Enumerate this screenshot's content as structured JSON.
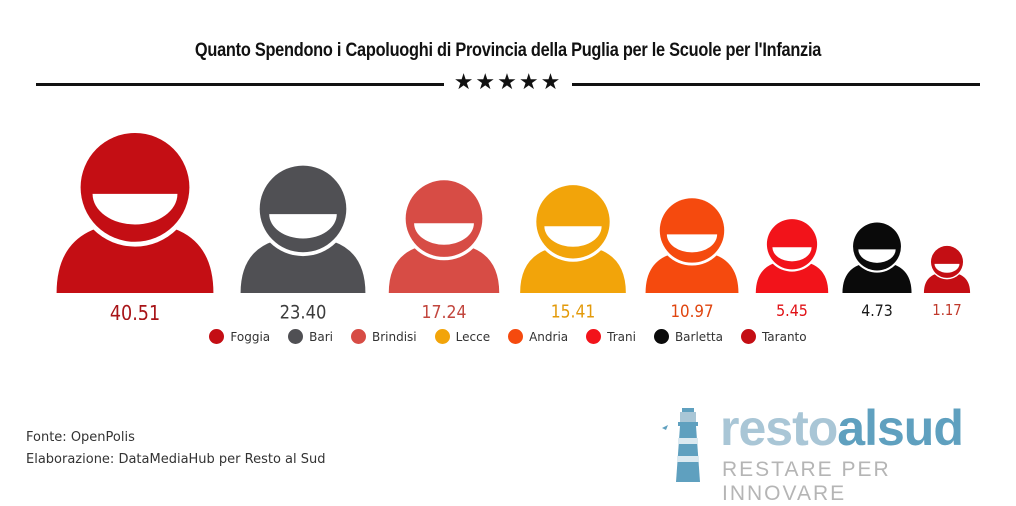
{
  "title": "Quanto Spendono i Capoluoghi di Provincia della Puglia per le Scuole per l'Infanzia",
  "stars": "★★★★★",
  "chart_data": {
    "type": "pictograph",
    "categories": [
      "Foggia",
      "Bari",
      "Brindisi",
      "Lecce",
      "Andria",
      "Trani",
      "Barletta",
      "Taranto"
    ],
    "values": [
      40.51,
      23.4,
      17.24,
      15.41,
      10.97,
      5.45,
      4.73,
      1.17
    ],
    "value_labels": [
      "40.51",
      "23.40",
      "17.24",
      "15.41",
      "10.97",
      "5.45",
      "4.73",
      "1.17"
    ],
    "colors": [
      "#c40e14",
      "#505054",
      "#d74c45",
      "#f2a40a",
      "#f54a0e",
      "#f2131a",
      "#0a0a0a",
      "#c40e14"
    ],
    "label_colors": [
      "#a81418",
      "#3c3c3c",
      "#c2463e",
      "#e39a0a",
      "#e0450f",
      "#e01015",
      "#1a1a1a",
      "#c0392b"
    ],
    "legend_placement": "bottom"
  },
  "footer": {
    "source": "Fonte: OpenPolis",
    "credit": "Elaborazione: DataMediaHub per Resto al Sud"
  },
  "logo": {
    "word_part1": "resto",
    "word_part2": "alsud",
    "tagline": "RESTARE PER INNOVARE",
    "icon": "lighthouse-icon"
  }
}
